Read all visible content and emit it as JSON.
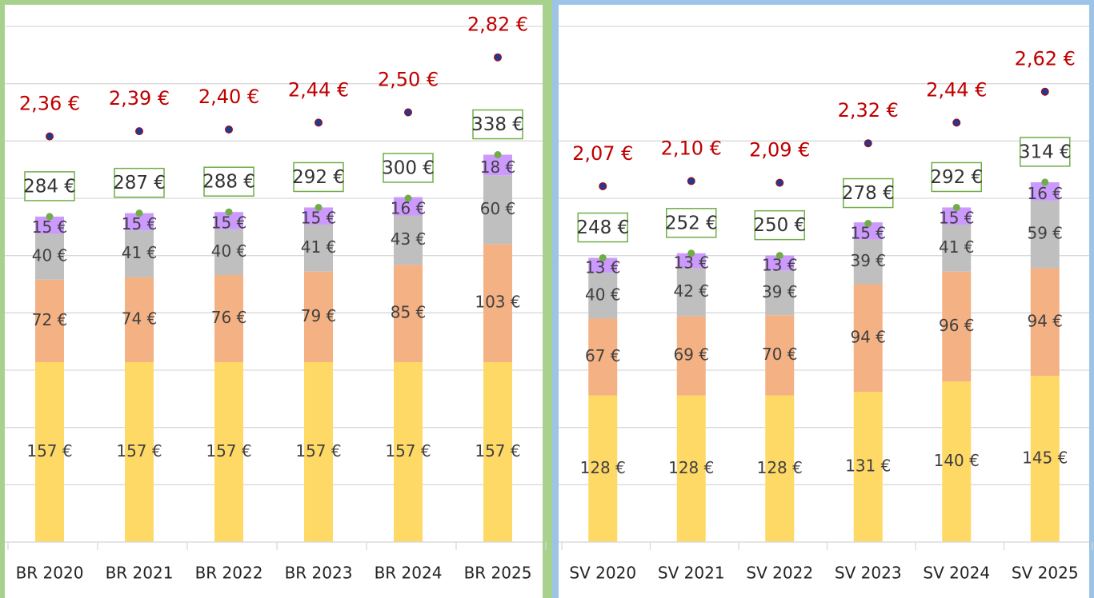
{
  "chart_data": [
    {
      "type": "bar",
      "categories": [
        "BR 2020",
        "BR 2021",
        "BR 2022",
        "BR 2023",
        "BR 2024",
        "BR 2025"
      ],
      "series": [
        {
          "color": "#ffd966",
          "values": [
            157,
            157,
            157,
            157,
            157,
            157
          ],
          "value_labels": [
            "157 €",
            "157 €",
            "157 €",
            "157 €",
            "157 €",
            "157 €"
          ]
        },
        {
          "color": "#f4b183",
          "values": [
            72,
            74,
            76,
            79,
            85,
            103
          ],
          "value_labels": [
            "72 €",
            "74 €",
            "76 €",
            "79 €",
            "85 €",
            "103 €"
          ]
        },
        {
          "color": "#bfbfbf",
          "values": [
            40,
            41,
            40,
            41,
            43,
            60
          ],
          "value_labels": [
            "40 €",
            "41 €",
            "40 €",
            "41 €",
            "43 €",
            "60 €"
          ]
        },
        {
          "color": "#cc99ff",
          "values": [
            15,
            15,
            15,
            15,
            16,
            18
          ],
          "value_labels": [
            "15 €",
            "15 €",
            "15 €",
            "15 €",
            "16 €",
            "18 €"
          ]
        }
      ],
      "totals": {
        "color": "#70ad47",
        "values": [
          284,
          287,
          288,
          292,
          300,
          338
        ],
        "value_labels": [
          "284 €",
          "287 €",
          "288 €",
          "292 €",
          "300 €",
          "338 €"
        ]
      },
      "prices": {
        "axis": "y2",
        "color": "#c00000",
        "values": [
          2.36,
          2.39,
          2.4,
          2.44,
          2.5,
          2.82
        ],
        "value_labels": [
          "2,36 €",
          "2,39 €",
          "2,40 €",
          "2,44 €",
          "2,50 €",
          "2,82 €"
        ]
      },
      "ylim": [
        0,
        450
      ],
      "yticks": [
        0,
        50,
        100,
        150,
        200,
        250,
        300,
        350,
        400,
        450
      ],
      "y2lim": [
        0,
        3
      ],
      "grid": true
    },
    {
      "type": "bar",
      "categories": [
        "SV 2020",
        "SV 2021",
        "SV 2022",
        "SV 2023",
        "SV 2024",
        "SV 2025"
      ],
      "series": [
        {
          "color": "#ffd966",
          "values": [
            128,
            128,
            128,
            131,
            140,
            145
          ],
          "value_labels": [
            "128 €",
            "128 €",
            "128 €",
            "131 €",
            "140 €",
            "145 €"
          ]
        },
        {
          "color": "#f4b183",
          "values": [
            67,
            69,
            70,
            94,
            96,
            94
          ],
          "value_labels": [
            "67 €",
            "69 €",
            "70 €",
            "94 €",
            "96 €",
            "94 €"
          ]
        },
        {
          "color": "#bfbfbf",
          "values": [
            40,
            42,
            39,
            39,
            41,
            59
          ],
          "value_labels": [
            "40 €",
            "42 €",
            "39 €",
            "39 €",
            "41 €",
            "59 €"
          ]
        },
        {
          "color": "#cc99ff",
          "values": [
            13,
            13,
            13,
            15,
            15,
            16
          ],
          "value_labels": [
            "13 €",
            "13 €",
            "13 €",
            "15 €",
            "15 €",
            "16 €"
          ]
        }
      ],
      "totals": {
        "color": "#70ad47",
        "values": [
          248,
          252,
          250,
          278,
          292,
          314
        ],
        "value_labels": [
          "248 €",
          "252 €",
          "250 €",
          "278 €",
          "292 €",
          "314 €"
        ]
      },
      "prices": {
        "axis": "y2",
        "color": "#c00000",
        "values": [
          2.07,
          2.1,
          2.09,
          2.32,
          2.44,
          2.62
        ],
        "value_labels": [
          "2,07 €",
          "2,10 €",
          "2,09 €",
          "2,32 €",
          "2,44 €",
          "2,62 €"
        ]
      },
      "ylim": [
        0,
        450
      ],
      "yticks": [
        0,
        50,
        100,
        150,
        200,
        250,
        300,
        350,
        400,
        450
      ],
      "y2lim": [
        0,
        3
      ],
      "grid": true
    }
  ]
}
